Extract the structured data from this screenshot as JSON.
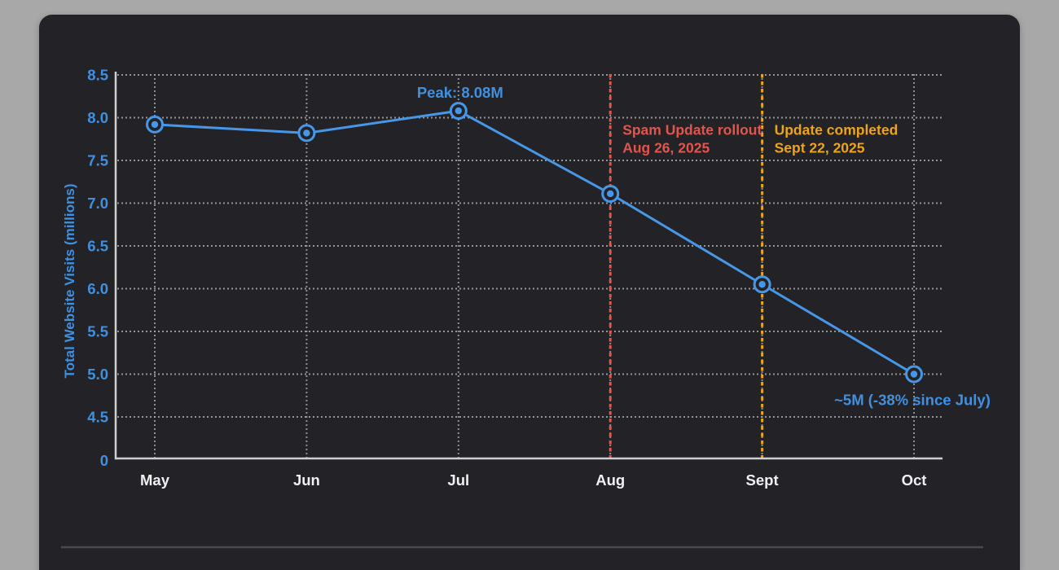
{
  "chart_data": {
    "type": "line",
    "title": "",
    "xlabel": "",
    "ylabel": "Total Website Visits (millions)",
    "categories": [
      "May",
      "Jun",
      "Jul",
      "Aug",
      "Sept",
      "Oct"
    ],
    "series": [
      {
        "name": "Total Website Visits",
        "values": [
          7.92,
          7.82,
          8.08,
          7.11,
          6.05,
          5.0
        ]
      }
    ],
    "yticks": [
      "8.5",
      "8.0",
      "7.5",
      "7.0",
      "6.5",
      "6.0",
      "5.5",
      "5.0",
      "4.5"
    ],
    "y_baseline_label": "0",
    "ylim": [
      4.5,
      8.5
    ],
    "axis_note": "broken y-axis: baseline labeled 0 below 4.5",
    "grid": true,
    "legend": "none",
    "annotations": [
      {
        "id": "peak",
        "text": "Peak: 8.08M",
        "anchor_category": "Jul",
        "position": "above-point"
      },
      {
        "id": "oct-drop",
        "text": "~5M (-38% since July)",
        "anchor_category": "Oct",
        "position": "below-point"
      }
    ],
    "events": [
      {
        "label": "Spam Update rollout",
        "date": "Aug 26, 2025",
        "x_category": "Aug",
        "line_style": "dashed",
        "color": "#e0564d"
      },
      {
        "label": "Update completed",
        "date": "Sept 22, 2025",
        "x_category": "Sept",
        "line_style": "dashed",
        "color": "#eda41d"
      }
    ]
  },
  "colors": {
    "page_bg": "#a8a8a8",
    "panel_bg": "#232327",
    "line": "#4797e8",
    "marker": "#4797e8",
    "blue_text": "#4190e0",
    "x_tick_text": "#f0f0f0",
    "grid": "#aaaaaa",
    "axis": "#cfcfcf",
    "divider": "#4b4b4f",
    "event_red": "#e0564d",
    "event_orange": "#eda41d"
  }
}
